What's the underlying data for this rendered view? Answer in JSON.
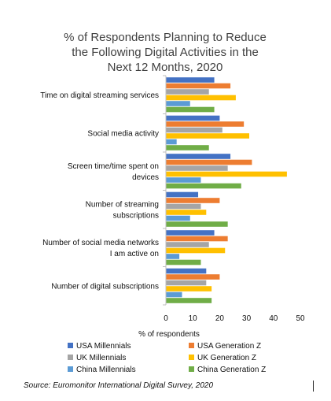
{
  "chart_data": {
    "type": "bar",
    "orientation": "horizontal",
    "title_lines": [
      "% of Respondents Planning to Reduce",
      "the Following Digital Activities in the",
      "Next 12 Months, 2020"
    ],
    "categories": [
      [
        "Time on digital streaming services"
      ],
      [
        "Social media activity"
      ],
      [
        "Screen time/time spent on",
        "devices"
      ],
      [
        "Number of streaming",
        "subscriptions"
      ],
      [
        "Number of social media networks",
        "I am active on"
      ],
      [
        "Number of digital subscriptions"
      ]
    ],
    "series": [
      {
        "name": "USA Millennials",
        "color": "#4472C4",
        "values": [
          18,
          20,
          24,
          12,
          18,
          15
        ]
      },
      {
        "name": "USA Generation Z",
        "color": "#ED7D31",
        "values": [
          24,
          29,
          32,
          20,
          23,
          20
        ]
      },
      {
        "name": "UK Millennials",
        "color": "#A5A5A5",
        "values": [
          16,
          21,
          23,
          13,
          16,
          15
        ]
      },
      {
        "name": "UK Generation Z",
        "color": "#FFC000",
        "values": [
          26,
          31,
          45,
          15,
          22,
          17
        ]
      },
      {
        "name": "China Millennials",
        "color": "#5B9BD5",
        "values": [
          9,
          4,
          13,
          9,
          5,
          6
        ]
      },
      {
        "name": "China Generation Z",
        "color": "#70AD47",
        "values": [
          18,
          16,
          28,
          23,
          13,
          17
        ]
      }
    ],
    "xlabel": "% of respondents",
    "xlim": [
      0,
      50
    ],
    "xticks": [
      "0",
      "10",
      "20",
      "30",
      "40",
      "50"
    ],
    "grid": false,
    "legend_position": "bottom"
  },
  "source": "Source: Euromonitor International Digital Survey, 2020"
}
